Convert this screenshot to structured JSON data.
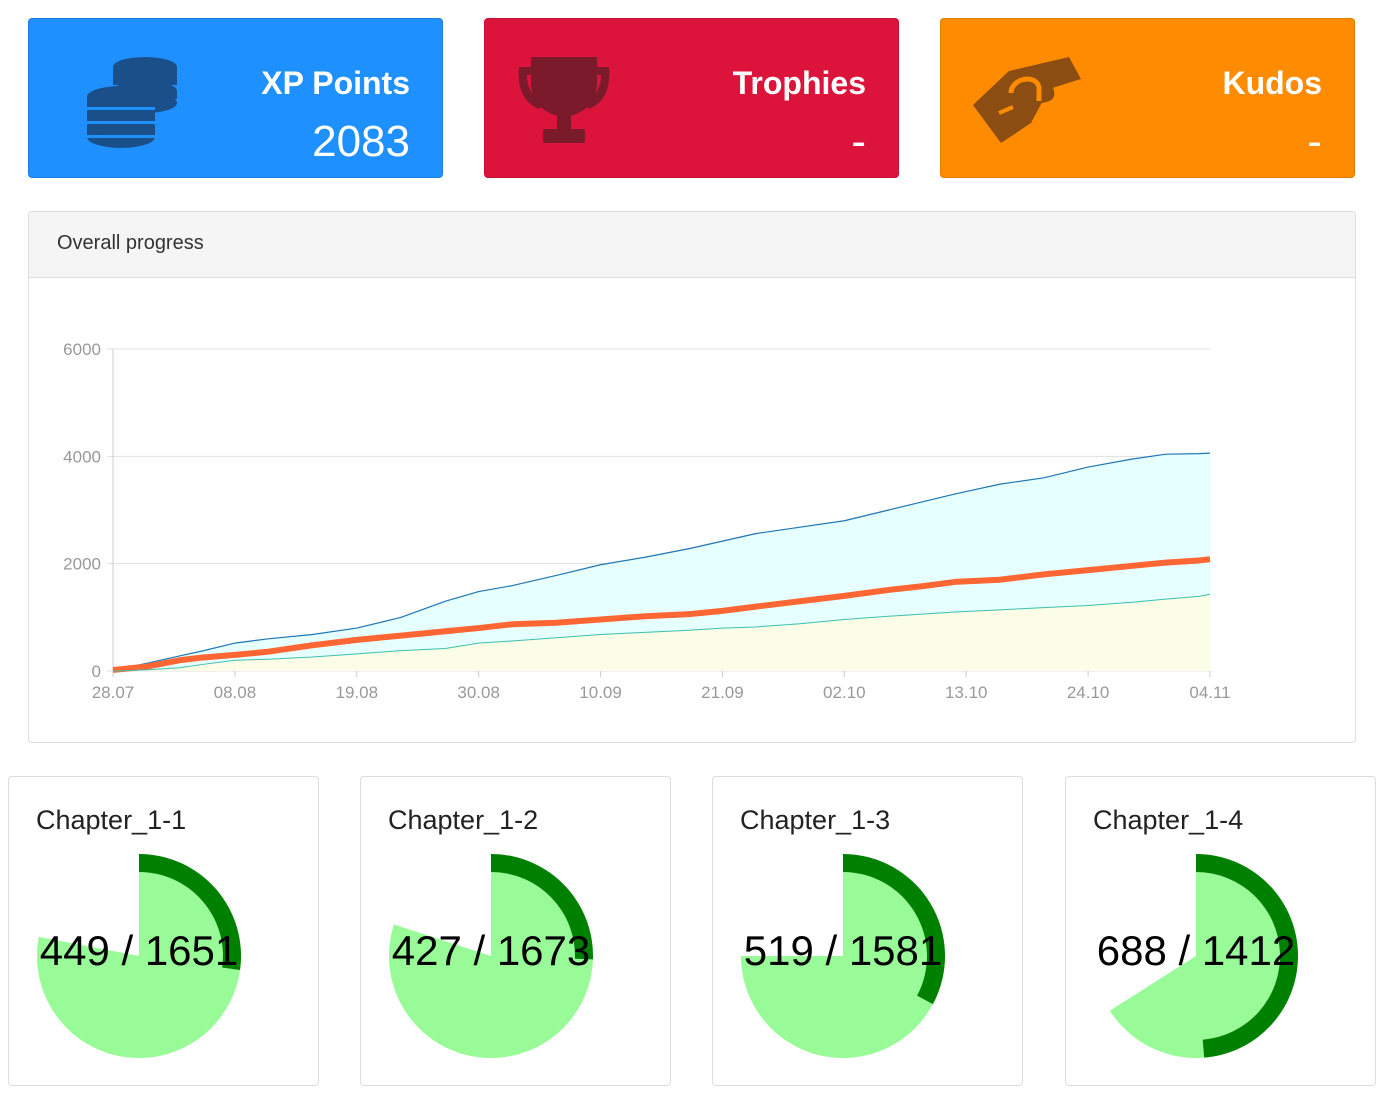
{
  "cards": {
    "xp": {
      "title": "XP Points",
      "value": "2083",
      "color": "#1e90ff",
      "icon": "coins-icon"
    },
    "trophies": {
      "title": "Trophies",
      "value": "-",
      "color": "#dc143c",
      "icon": "trophy-icon"
    },
    "kudos": {
      "title": "Kudos",
      "value": "-",
      "color": "#ff8c00",
      "icon": "handshake-icon"
    }
  },
  "progress_panel": {
    "title": "Overall progress"
  },
  "chart_data": {
    "type": "area",
    "title": "",
    "xlabel": "",
    "ylabel": "",
    "ylim": [
      0,
      6000
    ],
    "y_ticks": [
      "0",
      "2000",
      "4000",
      "6000"
    ],
    "x_ticks": [
      "28.07",
      "08.08",
      "19.08",
      "30.08",
      "10.09",
      "21.09",
      "02.10",
      "13.10",
      "24.10",
      "04.11"
    ],
    "grid": true,
    "x_day_index": [
      0,
      3,
      6,
      8,
      11,
      14,
      18,
      22,
      26,
      30,
      33,
      36,
      40,
      44,
      48,
      52,
      55,
      58,
      62,
      66,
      70,
      73,
      76,
      80,
      84,
      88,
      92,
      95,
      98,
      99
    ],
    "series": [
      {
        "color": "#1f77b4",
        "fill": "#e6ffff",
        "values": [
          20,
          140,
          280,
          370,
          520,
          600,
          680,
          800,
          1000,
          1300,
          1480,
          1590,
          1780,
          1980,
          2120,
          2280,
          2420,
          2560,
          2680,
          2800,
          3000,
          3150,
          3300,
          3480,
          3600,
          3800,
          3950,
          4040,
          4050,
          4060
        ]
      },
      {
        "color": "#ff6633",
        "fill": "none",
        "values": [
          20,
          80,
          200,
          250,
          300,
          360,
          480,
          580,
          660,
          740,
          800,
          870,
          900,
          960,
          1020,
          1060,
          1120,
          1200,
          1300,
          1400,
          1510,
          1580,
          1660,
          1700,
          1800,
          1880,
          1960,
          2020,
          2060,
          2083
        ]
      },
      {
        "color": "#3cbfb0",
        "fill": "#fbfde6",
        "values": [
          0,
          20,
          60,
          120,
          200,
          220,
          260,
          320,
          380,
          420,
          520,
          560,
          620,
          680,
          720,
          760,
          800,
          820,
          880,
          960,
          1020,
          1060,
          1100,
          1140,
          1180,
          1220,
          1280,
          1340,
          1390,
          1430
        ]
      }
    ]
  },
  "chapters": [
    {
      "title": "Chapter_1-1",
      "label": "449 / 1651",
      "done": 449,
      "total": 1651,
      "fill_fraction": 0.78
    },
    {
      "title": "Chapter_1-2",
      "label": "427 / 1673",
      "done": 427,
      "total": 1673,
      "fill_fraction": 0.8
    },
    {
      "title": "Chapter_1-3",
      "label": "519 / 1581",
      "done": 519,
      "total": 1581,
      "fill_fraction": 0.75
    },
    {
      "title": "Chapter_1-4",
      "label": "688 / 1412",
      "done": 688,
      "total": 1412,
      "fill_fraction": 0.66
    }
  ],
  "colors": {
    "pie_light": "#98fb98",
    "pie_dark": "#008000"
  }
}
